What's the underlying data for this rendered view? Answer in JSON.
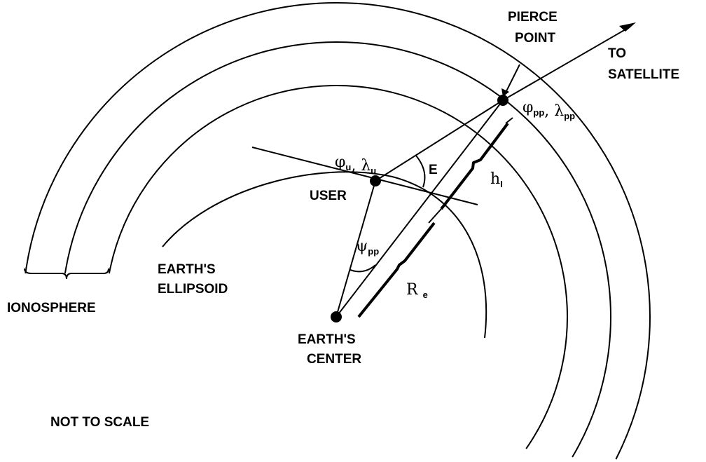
{
  "labels": {
    "pierce_point": [
      "PIERCE",
      "POINT"
    ],
    "to_satellite": [
      "TO",
      "SATELLITE"
    ],
    "user": "USER",
    "earths_ellipsoid": [
      "EARTH'S",
      "ELLIPSOID"
    ],
    "ionosphere": "IONOSPHERE",
    "earths_center": [
      "EARTH'S",
      "CENTER"
    ],
    "not_to_scale": "NOT TO SCALE",
    "elevation": "E"
  },
  "symbols": {
    "user_coords": [
      [
        "φ",
        "u"
      ],
      [
        ", λ",
        "u"
      ]
    ],
    "pierce_coords": [
      [
        "φ",
        "pp"
      ],
      [
        ", λ",
        "pp"
      ]
    ],
    "psi": [
      [
        "ψ",
        "pp"
      ]
    ],
    "height": [
      [
        "h",
        "I"
      ]
    ],
    "radius": [
      [
        "R ",
        "e"
      ]
    ]
  }
}
